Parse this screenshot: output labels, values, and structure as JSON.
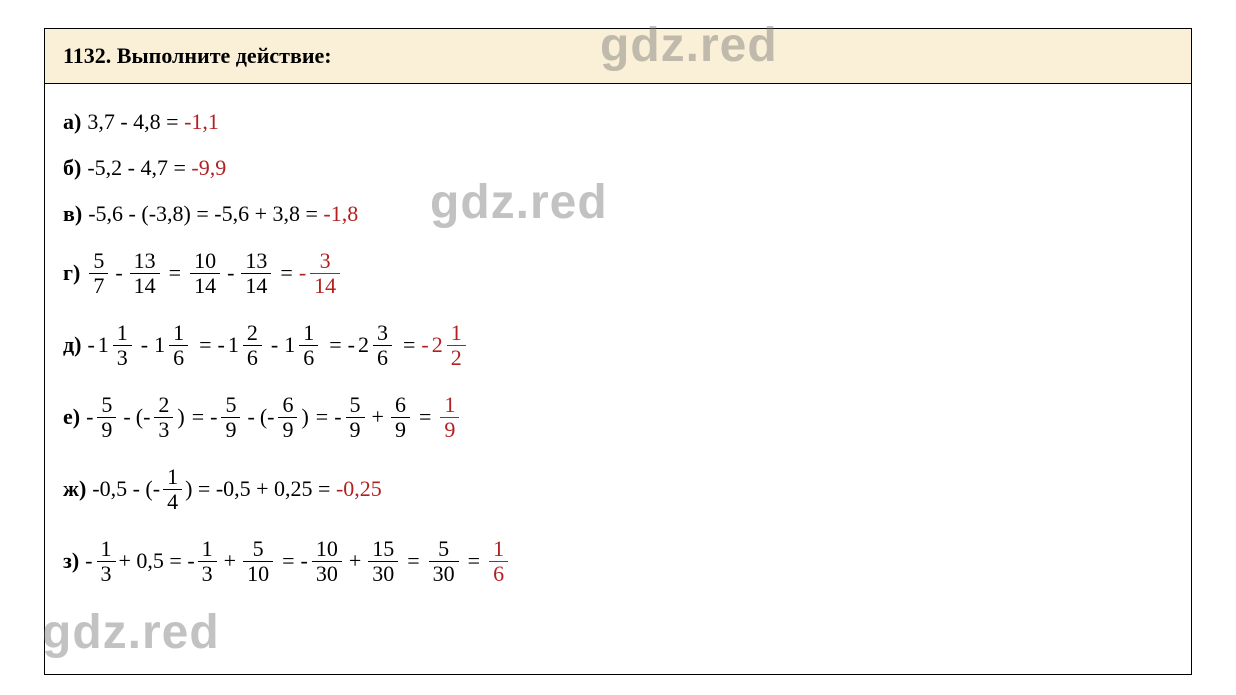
{
  "watermark": "gdz.red",
  "header": {
    "number": "1132.",
    "title": "Выполните действие:"
  },
  "lines": {
    "a": {
      "label": "а)",
      "expr": "3,7 - 4,8 = ",
      "result": "-1,1"
    },
    "b": {
      "label": "б)",
      "expr": "-5,2 - 4,7 = ",
      "result": "-9,9"
    },
    "v": {
      "label": "в)",
      "expr": "-5,6 - (-3,8) = -5,6 + 3,8 = ",
      "result": "-1,8"
    },
    "g": {
      "label": "г)",
      "f1": {
        "n": "5",
        "d": "7"
      },
      "f2": {
        "n": "13",
        "d": "14"
      },
      "f3": {
        "n": "10",
        "d": "14"
      },
      "f4": {
        "n": "13",
        "d": "14"
      },
      "res": {
        "n": "3",
        "d": "14"
      }
    },
    "d": {
      "label": "д)",
      "m1": {
        "w": "1",
        "n": "1",
        "d": "3"
      },
      "m2": {
        "w": "1",
        "n": "1",
        "d": "6"
      },
      "m3": {
        "w": "1",
        "n": "2",
        "d": "6"
      },
      "m4": {
        "w": "1",
        "n": "1",
        "d": "6"
      },
      "m5": {
        "w": "2",
        "n": "3",
        "d": "6"
      },
      "res": {
        "w": "2",
        "n": "1",
        "d": "2"
      }
    },
    "e": {
      "label": "е)",
      "f1": {
        "n": "5",
        "d": "9"
      },
      "f2": {
        "n": "2",
        "d": "3"
      },
      "f3": {
        "n": "5",
        "d": "9"
      },
      "f4": {
        "n": "6",
        "d": "9"
      },
      "f5": {
        "n": "5",
        "d": "9"
      },
      "f6": {
        "n": "6",
        "d": "9"
      },
      "res": {
        "n": "1",
        "d": "9"
      }
    },
    "zh": {
      "label": "ж)",
      "pre": "-0,5 - (-",
      "f1": {
        "n": "1",
        "d": "4"
      },
      "mid": ") = -0,5 + 0,25 = ",
      "result": "-0,25"
    },
    "z": {
      "label": "з)",
      "f1": {
        "n": "1",
        "d": "3"
      },
      "plus": "+ 0,5 = -",
      "f2": {
        "n": "1",
        "d": "3"
      },
      "f3": {
        "n": "5",
        "d": "10"
      },
      "f4": {
        "n": "10",
        "d": "30"
      },
      "f5": {
        "n": "15",
        "d": "30"
      },
      "f6": {
        "n": "5",
        "d": "30"
      },
      "res": {
        "n": "1",
        "d": "6"
      }
    }
  }
}
